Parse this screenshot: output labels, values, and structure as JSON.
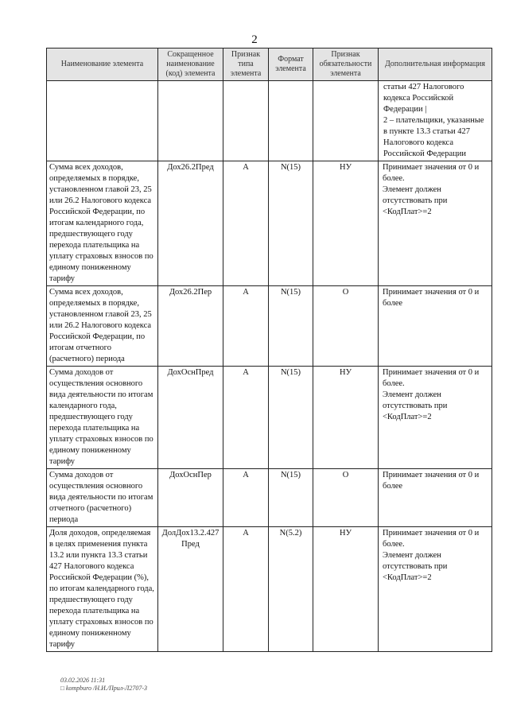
{
  "page_number": "2",
  "headers": [
    "Наименование элемента",
    "Сокращенное наименование (код) элемента",
    "Признак типа элемента",
    "Формат элемента",
    "Признак обязательности элемента",
    "Дополнительная информация"
  ],
  "continuation_info": "статьи 427 Налогового кодекса Российской Федерации |\n2 – плательщики, указанные в пункте 13.3 статьи 427 Налогового кодекса Российской Федерации",
  "rows": [
    {
      "name": "Сумма всех доходов, определяемых в порядке, установленном главой 23, 25 или 26.2 Налогового кодекса Российской Федерации, по итогам календарного года, предшествующего году перехода плательщика на уплату страховых взносов по единому пониженному тарифу",
      "code": "Дох26.2Пред",
      "type": "А",
      "format": "N(15)",
      "req": "НУ",
      "info": "Принимает значения от 0 и более.\nЭлемент должен отсутствовать при <КодПлат>=2"
    },
    {
      "name": "Сумма всех доходов, определяемых в порядке, установленном главой 23, 25 или 26.2 Налогового кодекса Российской Федерации, по итогам отчетного (расчетного) периода",
      "code": "Дох26.2Пер",
      "type": "А",
      "format": "N(15)",
      "req": "О",
      "info": "Принимает значения от 0 и более"
    },
    {
      "name": "Сумма доходов от осуществления основного вида деятельности по итогам календарного года, предшествующего году перехода плательщика на уплату страховых взносов по единому пониженному тарифу",
      "code": "ДохОснПред",
      "type": "А",
      "format": "N(15)",
      "req": "НУ",
      "info": "Принимает значения от 0 и более.\nЭлемент должен отсутствовать при <КодПлат>=2"
    },
    {
      "name": "Сумма доходов от осуществления основного вида деятельности по итогам отчетного (расчетного) периода",
      "code": "ДохОснПер",
      "type": "А",
      "format": "N(15)",
      "req": "О",
      "info": "Принимает значения от 0 и более"
    },
    {
      "name": "Доля доходов, определяемая в целях применения пункта 13.2 или пункта 13.3 статьи 427 Налогового кодекса Российской Федерации (%), по итогам календарного года, предшествующего году перехода плательщика на уплату страховых взносов по единому пониженному тарифу",
      "code": "ДолДох13.2.427 Пред",
      "type": "А",
      "format": "N(5.2)",
      "req": "НУ",
      "info": "Принимает значения от 0 и более.\nЭлемент должен отсутствовать при <КодПлат>=2"
    }
  ],
  "footer": {
    "date": "03.02.2026 11:31",
    "ref": "□ kompburo /Н.И./Прил-Л2707-3"
  }
}
